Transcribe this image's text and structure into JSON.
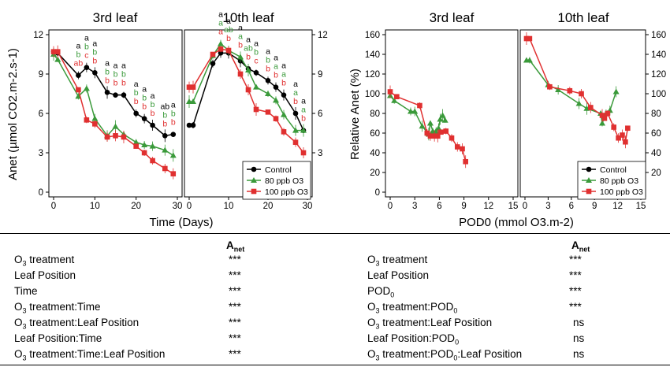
{
  "colors": {
    "control": "#000000",
    "o3_80": "#3a9a3a",
    "o3_100": "#e03030"
  },
  "chart_data": [
    {
      "type": "line",
      "title": "3rd leaf",
      "xlabel": "Time (Days)",
      "ylabel": "Anet (µmol CO2.m-2.s-1)",
      "xlim": [
        0,
        30
      ],
      "ylim": [
        0,
        12
      ],
      "xticks": [
        0,
        10,
        20,
        30
      ],
      "yticks": [
        0,
        3,
        6,
        9,
        12
      ],
      "series": [
        {
          "name": "Control",
          "x": [
            0,
            1,
            6,
            8,
            10,
            13,
            15,
            17,
            20,
            22,
            24,
            27,
            29
          ],
          "y": [
            10.7,
            10.6,
            8.9,
            9.5,
            9.1,
            7.6,
            7.4,
            7.4,
            6.0,
            5.6,
            5.1,
            4.3,
            4.4
          ]
        },
        {
          "name": "80 ppb O3",
          "x": [
            0,
            1,
            6,
            8,
            10,
            13,
            15,
            17,
            20,
            22,
            24,
            27,
            29
          ],
          "y": [
            10.5,
            10.1,
            7.3,
            7.9,
            5.6,
            4.3,
            5.0,
            4.4,
            3.8,
            3.6,
            3.5,
            3.2,
            2.8
          ]
        },
        {
          "name": "100 ppb O3",
          "x": [
            0,
            1,
            6,
            8,
            10,
            13,
            15,
            17,
            20,
            22,
            24,
            27,
            29
          ],
          "y": [
            10.7,
            10.7,
            7.8,
            5.5,
            5.2,
            4.2,
            4.3,
            4.2,
            3.5,
            3.0,
            2.4,
            1.8,
            1.4
          ]
        }
      ],
      "sig_rows": [
        {
          "x": 6,
          "letters": [
            "a",
            "b",
            "ab"
          ]
        },
        {
          "x": 8,
          "letters": [
            "a",
            "b",
            "c"
          ]
        },
        {
          "x": 10,
          "letters": [
            "a",
            "b",
            "b"
          ]
        },
        {
          "x": 13,
          "letters": [
            "a",
            "b",
            "b"
          ]
        },
        {
          "x": 15,
          "letters": [
            "a",
            "b",
            "b"
          ]
        },
        {
          "x": 17,
          "letters": [
            "a",
            "b",
            "b"
          ]
        },
        {
          "x": 20,
          "letters": [
            "a",
            "b",
            "b"
          ]
        },
        {
          "x": 22,
          "letters": [
            "a",
            "b",
            "b"
          ]
        },
        {
          "x": 24,
          "letters": [
            "a",
            "b",
            "b"
          ]
        },
        {
          "x": 27,
          "letters": [
            "ab",
            "b",
            "b"
          ]
        },
        {
          "x": 29,
          "letters": [
            "a",
            "b",
            "b"
          ]
        }
      ]
    },
    {
      "type": "line",
      "title": "10th leaf",
      "xlabel": "",
      "ylabel": "",
      "xlim": [
        0,
        30
      ],
      "ylim": [
        0,
        12
      ],
      "xticks": [
        0,
        10,
        20,
        30
      ],
      "yticks": [
        3,
        6,
        9,
        12
      ],
      "series": [
        {
          "name": "Control",
          "x": [
            0,
            1,
            6,
            8,
            10,
            13,
            15,
            17,
            20,
            22,
            24,
            27,
            29
          ],
          "y": [
            5.1,
            5.1,
            9.8,
            10.6,
            10.6,
            10.0,
            9.4,
            9.1,
            8.5,
            8.0,
            7.4,
            6.0,
            4.7
          ]
        },
        {
          "name": "80 ppb O3",
          "x": [
            0,
            1,
            6,
            8,
            10,
            13,
            15,
            17,
            20,
            22,
            24,
            27,
            29
          ],
          "y": [
            6.9,
            6.9,
            10.4,
            11.3,
            10.8,
            10.3,
            9.3,
            8.0,
            7.5,
            7.0,
            5.9,
            4.7,
            4.7
          ]
        },
        {
          "name": "100 ppb O3",
          "x": [
            0,
            1,
            6,
            8,
            10,
            13,
            15,
            17,
            20,
            22,
            24,
            27,
            29
          ],
          "y": [
            8.0,
            8.0,
            10.5,
            10.9,
            10.8,
            9.0,
            7.8,
            6.3,
            6.1,
            5.6,
            4.6,
            3.8,
            3.0
          ]
        }
      ],
      "sig_rows": [
        {
          "x": 8,
          "letters": [
            "a",
            "a",
            "a"
          ]
        },
        {
          "x": 10,
          "letters": [
            "a",
            "ab",
            "b"
          ]
        },
        {
          "x": 13,
          "letters": [
            "a",
            "a",
            "b"
          ]
        },
        {
          "x": 15,
          "letters": [
            "a",
            "ab",
            "b"
          ]
        },
        {
          "x": 17,
          "letters": [
            "a",
            "b",
            "c"
          ]
        },
        {
          "x": 20,
          "letters": [
            "a",
            "b",
            "b"
          ]
        },
        {
          "x": 22,
          "letters": [
            "a",
            "a",
            "b"
          ]
        },
        {
          "x": 24,
          "letters": [
            "a",
            "a",
            "b"
          ]
        },
        {
          "x": 27,
          "letters": [
            "a",
            "a",
            "b"
          ]
        },
        {
          "x": 29,
          "letters": [
            "a",
            "a",
            "b"
          ]
        }
      ]
    },
    {
      "type": "line",
      "title": "3rd leaf",
      "xlabel": "POD0 (mmol O3.m-2)",
      "ylabel": "Relative Anet (%)",
      "xlim": [
        0,
        15
      ],
      "ylim": [
        0,
        160
      ],
      "xticks": [
        0,
        3,
        6,
        9,
        12,
        15
      ],
      "yticks": [
        0,
        20,
        40,
        60,
        80,
        100,
        120,
        140,
        160
      ],
      "series": [
        {
          "name": "80 ppb O3",
          "x": [
            0,
            0.5,
            2.5,
            3,
            3.9,
            4.7,
            4.9,
            5.2,
            5.6,
            5.9,
            6.1,
            6.4,
            6.7
          ],
          "y": [
            98,
            93,
            82,
            82,
            67,
            59,
            70,
            62,
            62,
            65,
            74,
            78,
            73
          ]
        },
        {
          "name": "100 ppb O3",
          "x": [
            0,
            0.8,
            3.6,
            4.5,
            4.9,
            5.4,
            5.8,
            6.2,
            6.8,
            7.5,
            8.2,
            8.8,
            9.2
          ],
          "y": [
            102,
            97,
            88,
            60,
            57,
            57,
            57,
            61,
            62,
            55,
            46,
            44,
            31
          ]
        }
      ]
    },
    {
      "type": "line",
      "title": "10th leaf",
      "xlabel": "",
      "ylabel": "",
      "xlim": [
        0,
        15
      ],
      "ylim": [
        0,
        160
      ],
      "xticks": [
        0,
        3,
        6,
        9,
        12,
        15
      ],
      "yticks": [
        20,
        40,
        60,
        80,
        100,
        120,
        140,
        160
      ],
      "series": [
        {
          "name": "80 ppb O3",
          "x": [
            0.2,
            0.6,
            3,
            4.3,
            7,
            8,
            9.8,
            10,
            10.5,
            11,
            11.8
          ],
          "y": [
            134,
            134,
            109,
            104,
            90,
            85,
            80,
            70,
            80,
            83,
            102
          ]
        },
        {
          "name": "100 ppb O3",
          "x": [
            0.2,
            0.6,
            3.2,
            5.8,
            7.3,
            8.5,
            10,
            10.3,
            10.7,
            11.5,
            12.1,
            12.6,
            13,
            13.3
          ],
          "y": [
            156,
            156,
            107,
            103,
            100,
            86,
            78,
            75,
            80,
            66,
            55,
            58,
            51,
            65
          ]
        }
      ]
    }
  ],
  "legend_left": [
    {
      "key": "control",
      "label": "Control"
    },
    {
      "key": "o3_80",
      "label": "80 ppb O3"
    },
    {
      "key": "o3_100",
      "label": "100 ppb O3"
    }
  ],
  "legend_right": [
    {
      "key": "control",
      "label": "Control"
    },
    {
      "key": "o3_80",
      "label": "80 ppb O3"
    },
    {
      "key": "o3_100",
      "label": "100 ppb O3"
    }
  ],
  "table": {
    "header": "A",
    "header_sub": "net",
    "left": [
      {
        "main": "O",
        "sub": "3",
        "rest": " treatment",
        "sig": "***"
      },
      {
        "main": "Leaf Position",
        "sub": "",
        "rest": "",
        "sig": "***"
      },
      {
        "main": "Time",
        "sub": "",
        "rest": "",
        "sig": "***"
      },
      {
        "main": "O",
        "sub": "3",
        "rest": " treatment:Time",
        "sig": "***"
      },
      {
        "main": "O",
        "sub": "3",
        "rest": " treatment:Leaf Position",
        "sig": "***"
      },
      {
        "main": "Leaf Position:Time",
        "sub": "",
        "rest": "",
        "sig": "***"
      },
      {
        "main": "O",
        "sub": "3",
        "rest": " treatment:Time:Leaf Position",
        "sig": "***"
      }
    ],
    "right": [
      {
        "main": "O",
        "sub": "3",
        "rest": " treatment",
        "sig": "***"
      },
      {
        "main": "Leaf Position",
        "sub": "",
        "rest": "",
        "sig": "***"
      },
      {
        "main": "POD",
        "sub": "0",
        "rest": "",
        "sig": "***"
      },
      {
        "main": "O",
        "sub": "3",
        "rest": " treatment:POD",
        "sub2": "0",
        "sig": "***"
      },
      {
        "main": "O",
        "sub": "3",
        "rest": " treatment:Leaf Position",
        "sig": "ns"
      },
      {
        "main": "Leaf Position:POD",
        "sub": "0",
        "rest": "",
        "sig": "ns"
      },
      {
        "main": "O",
        "sub": "3",
        "rest": " treatment:POD",
        "sub2": "0",
        "rest2": ":Leaf Position",
        "sig": "ns"
      }
    ]
  }
}
